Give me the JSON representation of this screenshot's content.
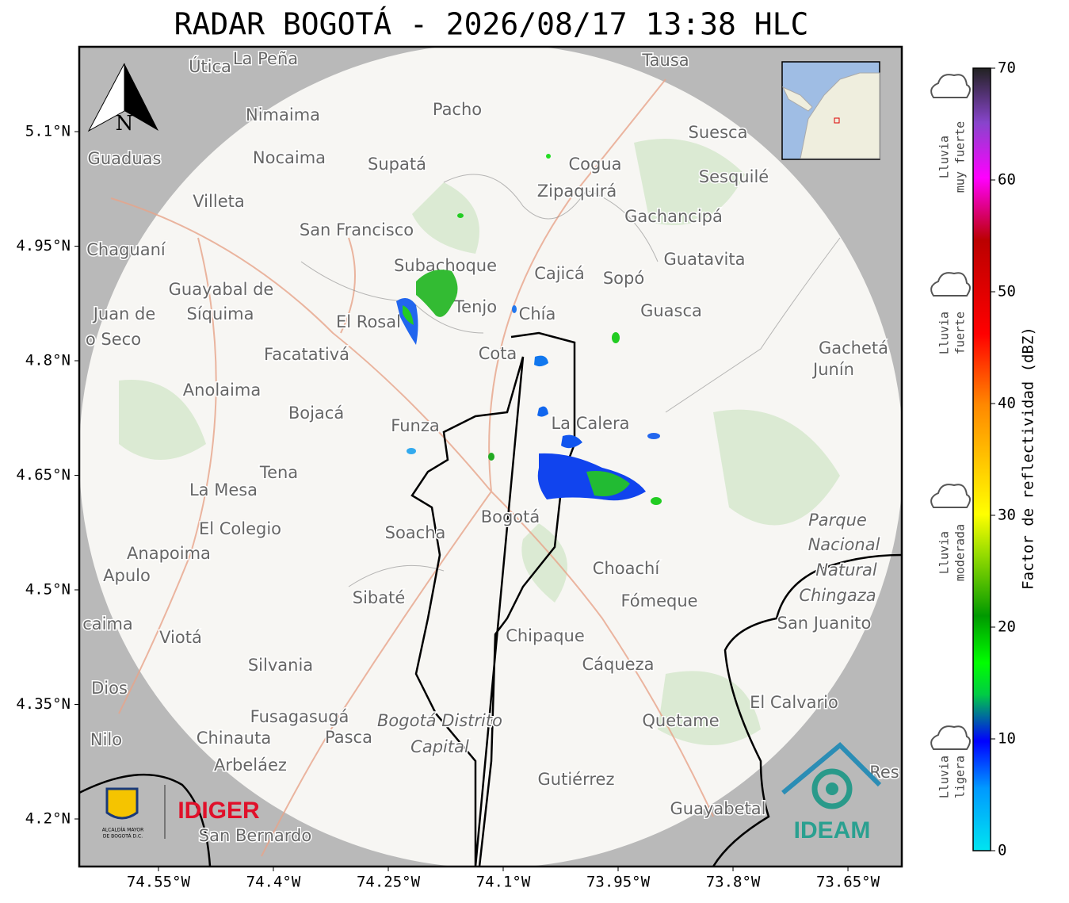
{
  "title": "RADAR BOGOTÁ - 2026/08/17 13:38 HLC",
  "map": {
    "xlim": [
      -74.6534,
      -73.5797
    ],
    "ylim": [
      4.1377,
      5.2111
    ],
    "xticks": [
      {
        "value": -74.55,
        "label": "74.55°W"
      },
      {
        "value": -74.4,
        "label": "74.4°W"
      },
      {
        "value": -74.25,
        "label": "74.25°W"
      },
      {
        "value": -74.1,
        "label": "74.1°W"
      },
      {
        "value": -73.95,
        "label": "73.95°W"
      },
      {
        "value": -73.8,
        "label": "73.8°W"
      },
      {
        "value": -73.65,
        "label": "73.65°W"
      }
    ],
    "yticks": [
      {
        "value": 5.1,
        "label": "5.1°N"
      },
      {
        "value": 4.95,
        "label": "4.95°N"
      },
      {
        "value": 4.8,
        "label": "4.8°N"
      },
      {
        "value": 4.65,
        "label": "4.65°N"
      },
      {
        "value": 4.5,
        "label": "4.5°N"
      },
      {
        "value": 4.35,
        "label": "4.35°N"
      },
      {
        "value": 4.2,
        "label": "4.2°N"
      }
    ],
    "grid": true
  },
  "north_label": "N",
  "places": [
    "Útica",
    "La Peña",
    "Tausa",
    "Pacho",
    "Nimaima",
    "Suesca",
    "Guaduas",
    "Nocaima",
    "Supatá",
    "Cogua",
    "Sesquilé",
    "Zipaquirá",
    "Villeta",
    "Gachancipá",
    "San Francisco",
    "Chaguaní",
    "Guatavita",
    "Subachoque",
    "Cajicá",
    "Sopó",
    "Guayabal de",
    "Síquima",
    "Juan de",
    "El Rosal",
    "Tenjo",
    "Chía",
    "Guasca",
    "o Seco",
    "Facatativá",
    "Cota",
    "Gachetá",
    "Junín",
    "Anolaima",
    "Bojacá",
    "La Calera",
    "Funza",
    "Tena",
    "La Mesa",
    "El Colegio",
    "Soacha",
    "Bogotá",
    "Parque",
    "Nacional",
    "Natural",
    "Chingaza",
    "Anapoima",
    "Apulo",
    "Choachí",
    "Sibaté",
    "Fómeque",
    "San Juanito",
    "caima",
    "Viotá",
    "Chipaque",
    "Silvania",
    "Cáqueza",
    "Dios",
    "El Calvario",
    "Fusagasugá",
    "Bogotá Distrito",
    "Capital",
    "Quetame",
    "Nilo",
    "Chinauta",
    "Pasca",
    "Arbeláez",
    "Gutiérrez",
    "Res",
    "Guayabetal",
    "San Bernardo"
  ],
  "colorbar": {
    "label": "Factor de reflectividad (dBZ)",
    "lim": [
      0,
      70
    ],
    "ticks": [
      0,
      10,
      20,
      30,
      40,
      50,
      60,
      70
    ]
  },
  "rain_levels": [
    {
      "lines": [
        "Lluvia",
        "muy fuerte"
      ]
    },
    {
      "lines": [
        "Lluvia",
        "fuerte"
      ]
    },
    {
      "lines": [
        "Lluvia",
        "moderada"
      ]
    },
    {
      "lines": [
        "Lluvia",
        "ligera"
      ]
    }
  ],
  "logos": {
    "alcaldia": [
      "ALCALDÍA MAYOR",
      "DE BOGOTÁ D.C."
    ],
    "idiger": "IDIGER",
    "ideam": "IDEAM"
  }
}
